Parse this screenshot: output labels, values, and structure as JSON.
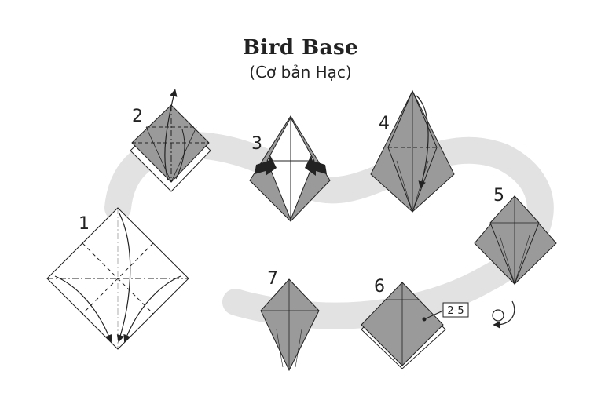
{
  "title": "Bird Base",
  "subtitle": "(Cơ bản Hạc)",
  "steps": [
    "1",
    "2",
    "3",
    "4",
    "5",
    "6",
    "7"
  ],
  "callout": "2-5",
  "colors": {
    "paper": "#9a9a9a",
    "paper_light": "#ffffff",
    "path_band": "#e2e2e2",
    "line": "#222222"
  },
  "icons": [
    "fold-arrow-icon",
    "push-arrow-icon",
    "turn-over-icon"
  ]
}
